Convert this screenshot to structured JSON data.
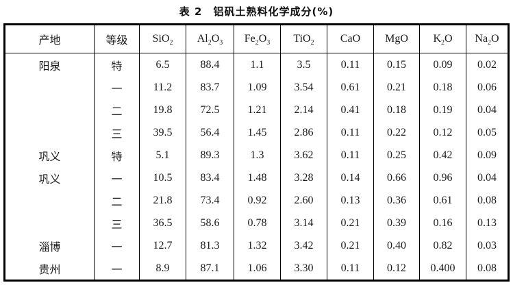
{
  "title": "表 2　铝矾土熟料化学成分(%)",
  "table": {
    "columns": [
      {
        "base": "产地"
      },
      {
        "base": "等级"
      },
      {
        "base": "SiO",
        "sub": "2"
      },
      {
        "base": "Al",
        "sub": "2",
        "base2": "O",
        "sub2": "3"
      },
      {
        "base": "Fe",
        "sub": "2",
        "base2": "O",
        "sub2": "3"
      },
      {
        "base": "TiO",
        "sub": "2"
      },
      {
        "base": "CaO"
      },
      {
        "base": "MgO"
      },
      {
        "base": "K",
        "sub": "2",
        "base2": "O"
      },
      {
        "base": "Na",
        "sub": "2",
        "base2": "O"
      }
    ],
    "rows": [
      [
        "阳泉",
        "特",
        "6.5",
        "88.4",
        "1.1",
        "3.5",
        "0.11",
        "0.15",
        "0.09",
        "0.02"
      ],
      [
        "",
        "一",
        "11.2",
        "83.7",
        "1.09",
        "3.54",
        "0.61",
        "0.21",
        "0.18",
        "0.06"
      ],
      [
        "",
        "二",
        "19.8",
        "72.5",
        "1.21",
        "2.14",
        "0.41",
        "0.18",
        "0.19",
        "0.04"
      ],
      [
        "",
        "三",
        "39.5",
        "56.4",
        "1.45",
        "2.86",
        "0.11",
        "0.22",
        "0.12",
        "0.05"
      ],
      [
        "巩义",
        "特",
        "5.1",
        "89.3",
        "1.3",
        "3.62",
        "0.11",
        "0.25",
        "0.42",
        "0.09"
      ],
      [
        "巩义",
        "一",
        "10.5",
        "83.4",
        "1.48",
        "3.28",
        "0.14",
        "0.66",
        "0.96",
        "0.04"
      ],
      [
        "",
        "二",
        "21.8",
        "73.4",
        "0.92",
        "2.60",
        "0.13",
        "0.36",
        "0.61",
        "0.08"
      ],
      [
        "",
        "三",
        "36.5",
        "58.6",
        "0.78",
        "3.14",
        "0.21",
        "0.39",
        "0.16",
        "0.13"
      ],
      [
        "淄博",
        "一",
        "12.7",
        "81.3",
        "1.32",
        "3.42",
        "0.21",
        "0.40",
        "0.82",
        "0.03"
      ],
      [
        "贵州",
        "一",
        "8.9",
        "87.1",
        "1.06",
        "3.30",
        "0.11",
        "0.12",
        "0.400",
        "0.08"
      ]
    ]
  }
}
